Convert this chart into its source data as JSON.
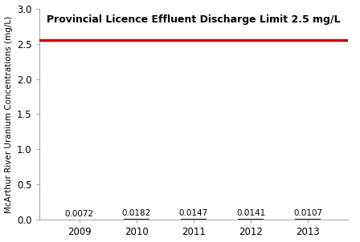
{
  "years": [
    2009,
    2010,
    2011,
    2012,
    2013
  ],
  "values": [
    0.0072,
    0.0182,
    0.0147,
    0.0141,
    0.0107
  ],
  "bar_color": "#1a1a3e",
  "bar_width": 0.45,
  "limit_value": 2.55,
  "limit_color": "#cc0000",
  "limit_label": "Provincial Licence Effluent Discharge Limit 2.5 mg/L",
  "ylabel": "McArthur River Uranium Concentrations (mg/L)",
  "ylim": [
    0,
    3.0
  ],
  "yticks": [
    0.0,
    0.5,
    1.0,
    1.5,
    2.0,
    2.5,
    3.0
  ],
  "background_color": "#ffffff",
  "value_labels": [
    "0.0072",
    "0.0182",
    "0.0147",
    "0.0141",
    "0.0107"
  ],
  "value_label_fontsize": 7.5,
  "ylabel_fontsize": 7.5,
  "tick_fontsize": 8.5,
  "legend_fontsize": 9
}
